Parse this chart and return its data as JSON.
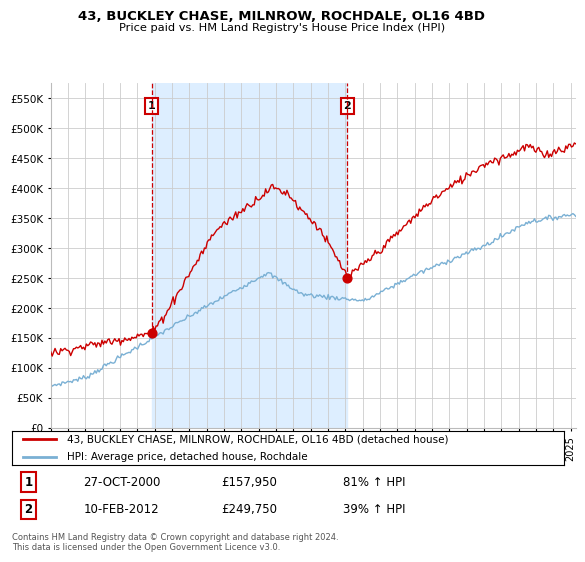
{
  "title": "43, BUCKLEY CHASE, MILNROW, ROCHDALE, OL16 4BD",
  "subtitle": "Price paid vs. HM Land Registry's House Price Index (HPI)",
  "ylabel_ticks": [
    "£0",
    "£50K",
    "£100K",
    "£150K",
    "£200K",
    "£250K",
    "£300K",
    "£350K",
    "£400K",
    "£450K",
    "£500K",
    "£550K"
  ],
  "ytick_vals": [
    0,
    50000,
    100000,
    150000,
    200000,
    250000,
    300000,
    350000,
    400000,
    450000,
    500000,
    550000
  ],
  "ylim": [
    0,
    575000
  ],
  "xlim_start": 1995.0,
  "xlim_end": 2025.3,
  "hpi_color": "#7ab0d4",
  "price_color": "#cc0000",
  "shade_color": "#ddeeff",
  "transaction1": {
    "date": "27-OCT-2000",
    "price": 157950,
    "pct": "81% ↑ HPI",
    "x": 2000.82
  },
  "transaction2": {
    "date": "10-FEB-2012",
    "price": 249750,
    "pct": "39% ↑ HPI",
    "x": 2012.12
  },
  "legend_label1": "43, BUCKLEY CHASE, MILNROW, ROCHDALE, OL16 4BD (detached house)",
  "legend_label2": "HPI: Average price, detached house, Rochdale",
  "footer": "Contains HM Land Registry data © Crown copyright and database right 2024.\nThis data is licensed under the Open Government Licence v3.0.",
  "background_color": "#ffffff",
  "grid_color": "#cccccc"
}
